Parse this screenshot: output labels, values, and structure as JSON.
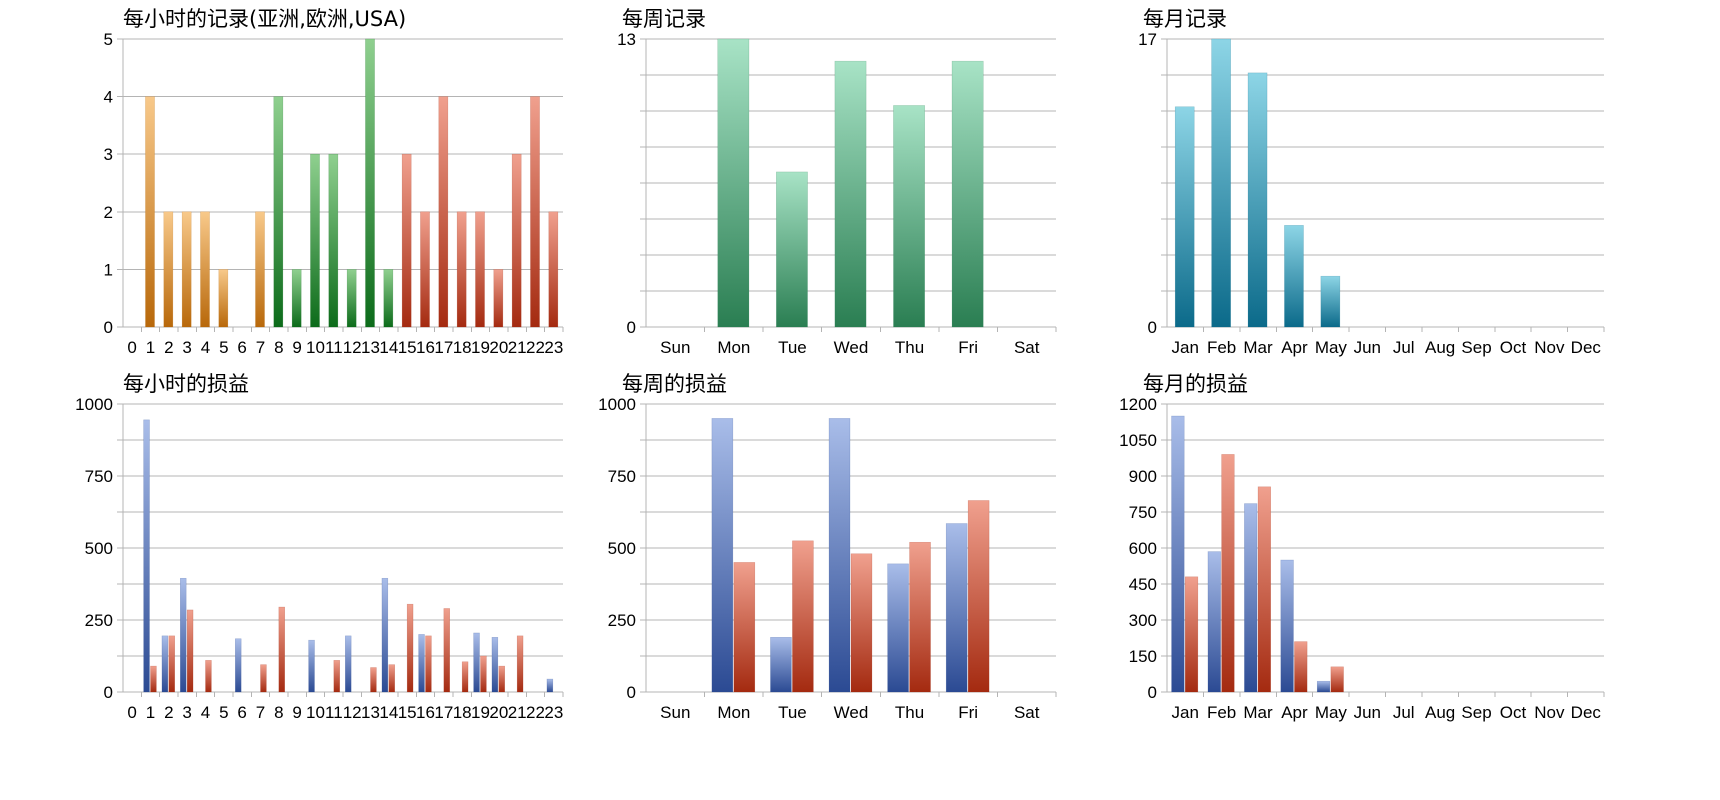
{
  "gradients": {
    "orange": [
      "#f8c98a",
      "#b8680a"
    ],
    "green": [
      "#8fd08f",
      "#0c6b1a"
    ],
    "red": [
      "#f0a08e",
      "#a42a10"
    ],
    "mint": [
      "#a8e3c6",
      "#2a7e52"
    ],
    "teal": [
      "#8dd5e6",
      "#0b6a8a"
    ],
    "blue": [
      "#a9bde9",
      "#2b4a93"
    ],
    "redp": [
      "#f0a08e",
      "#a42a10"
    ]
  },
  "chart_data": [
    {
      "type": "bar",
      "title": "每小时的记录(亚洲,欧洲,USA)",
      "categories": [
        "0",
        "1",
        "2",
        "3",
        "4",
        "5",
        "6",
        "7",
        "8",
        "9",
        "10",
        "11",
        "12",
        "13",
        "14",
        "15",
        "16",
        "17",
        "18",
        "19",
        "20",
        "21",
        "22",
        "23"
      ],
      "series": [
        {
          "values": [
            0,
            4,
            2,
            2,
            2,
            1,
            0,
            2,
            4,
            1,
            3,
            3,
            1,
            5,
            1,
            3,
            2,
            4,
            2,
            2,
            1,
            3,
            4,
            2
          ],
          "colors_by_category": [
            "orange",
            "orange",
            "orange",
            "orange",
            "orange",
            "orange",
            "orange",
            "orange",
            "green",
            "green",
            "green",
            "green",
            "green",
            "green",
            "green",
            "red",
            "red",
            "red",
            "red",
            "red",
            "red",
            "red",
            "red",
            "red"
          ]
        }
      ],
      "yticks": [
        "0",
        "1",
        "2",
        "3",
        "4",
        "5"
      ],
      "ylim": [
        0,
        5
      ],
      "gridlines": 5,
      "grid": true
    },
    {
      "type": "bar",
      "title": "每周记录",
      "categories": [
        "Sun",
        "Mon",
        "Tue",
        "Wed",
        "Thu",
        "Fri",
        "Sat"
      ],
      "series": [
        {
          "values": [
            0,
            13,
            7,
            12,
            10,
            12,
            0
          ],
          "color": "mint"
        }
      ],
      "yticks": [
        "0",
        "13"
      ],
      "ylim": [
        0,
        13
      ],
      "gridlines": 8,
      "grid": true
    },
    {
      "type": "bar",
      "title": "每月记录",
      "categories": [
        "Jan",
        "Feb",
        "Mar",
        "Apr",
        "May",
        "Jun",
        "Jul",
        "Aug",
        "Sep",
        "Oct",
        "Nov",
        "Dec"
      ],
      "series": [
        {
          "values": [
            13,
            17,
            15,
            6,
            3,
            0,
            0,
            0,
            0,
            0,
            0,
            0
          ],
          "color": "teal"
        }
      ],
      "yticks": [
        "0",
        "17"
      ],
      "ylim": [
        0,
        17
      ],
      "gridlines": 8,
      "grid": true
    },
    {
      "type": "bar",
      "title": "每小时的损益",
      "categories": [
        "0",
        "1",
        "2",
        "3",
        "4",
        "5",
        "6",
        "7",
        "8",
        "9",
        "10",
        "11",
        "12",
        "13",
        "14",
        "15",
        "16",
        "17",
        "18",
        "19",
        "20",
        "21",
        "22",
        "23"
      ],
      "series": [
        {
          "color": "blue",
          "values": [
            0,
            945,
            195,
            395,
            0,
            0,
            185,
            0,
            0,
            0,
            180,
            0,
            195,
            0,
            395,
            0,
            200,
            0,
            0,
            205,
            190,
            0,
            0,
            45
          ]
        },
        {
          "color": "redp",
          "values": [
            0,
            90,
            195,
            285,
            110,
            0,
            0,
            95,
            295,
            0,
            0,
            110,
            0,
            85,
            95,
            305,
            195,
            290,
            105,
            125,
            90,
            195,
            0,
            0
          ]
        }
      ],
      "yticks": [
        "0",
        "250",
        "500",
        "750",
        "1000"
      ],
      "ylim": [
        0,
        1000
      ],
      "gridlines": 8,
      "grid": true
    },
    {
      "type": "bar",
      "title": "每周的损益",
      "categories": [
        "Sun",
        "Mon",
        "Tue",
        "Wed",
        "Thu",
        "Fri",
        "Sat"
      ],
      "series": [
        {
          "color": "blue",
          "values": [
            0,
            950,
            190,
            950,
            445,
            585,
            0
          ]
        },
        {
          "color": "redp",
          "values": [
            0,
            450,
            525,
            480,
            520,
            665,
            0
          ]
        }
      ],
      "yticks": [
        "0",
        "250",
        "500",
        "750",
        "1000"
      ],
      "ylim": [
        0,
        1000
      ],
      "gridlines": 8,
      "grid": true
    },
    {
      "type": "bar",
      "title": "每月的损益",
      "categories": [
        "Jan",
        "Feb",
        "Mar",
        "Apr",
        "May",
        "Jun",
        "Jul",
        "Aug",
        "Sep",
        "Oct",
        "Nov",
        "Dec"
      ],
      "series": [
        {
          "color": "blue",
          "values": [
            1150,
            585,
            785,
            550,
            45,
            0,
            0,
            0,
            0,
            0,
            0,
            0
          ]
        },
        {
          "color": "redp",
          "values": [
            480,
            990,
            855,
            210,
            105,
            0,
            0,
            0,
            0,
            0,
            0,
            0
          ]
        }
      ],
      "yticks": [
        "0",
        "150",
        "300",
        "450",
        "600",
        "750",
        "900",
        "1050",
        "1200"
      ],
      "ylim": [
        0,
        1200
      ],
      "gridlines": 8,
      "grid": true
    }
  ]
}
